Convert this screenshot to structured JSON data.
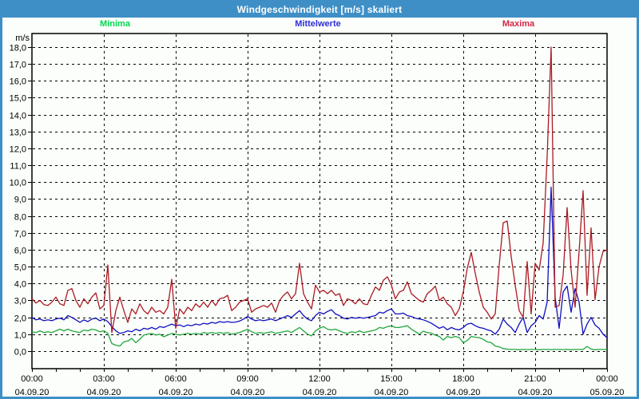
{
  "window": {
    "title": "Windgeschwindigkeit [m/s] skaliert"
  },
  "colors": {
    "frame": "#3E8FC6",
    "titlebar_bg": "#3E8FC6",
    "titlebar_text": "#FFFFFF",
    "background": "#FBFEFA",
    "plot_border": "#000000",
    "grid": "#000000",
    "axis_text": "#000000"
  },
  "legend": [
    {
      "label": "Minima",
      "text_color": "#00D74E"
    },
    {
      "label": "Mittelwerte",
      "text_color": "#2E2ED8"
    },
    {
      "label": "Maxima",
      "text_color": "#D22745"
    }
  ],
  "chart_data": {
    "type": "line",
    "title": "Windgeschwindigkeit [m/s] skaliert",
    "y_unit_label": "m/s",
    "xlabel": "",
    "ylabel": "m/s",
    "ylim": [
      -1.05,
      18.85
    ],
    "y_tick_step": 1.0,
    "y_tick_labels": [
      "0,0",
      "1,0",
      "2,0",
      "3,0",
      "4,0",
      "5,0",
      "6,0",
      "7,0",
      "8,0",
      "9,0",
      "10,0",
      "11,0",
      "12,0",
      "13,0",
      "14,0",
      "15,0",
      "16,0",
      "17,0",
      "18,0"
    ],
    "grid": true,
    "grid_style": "dashed",
    "legend_position": "top",
    "x_span_hours": 24,
    "x_grid_hours": 3,
    "x_minor_tick_hours": 1,
    "sample_interval_minutes": 10,
    "x_ticks": [
      {
        "time": "00:00",
        "date": "04.09.20"
      },
      {
        "time": "03:00",
        "date": "04.09.20"
      },
      {
        "time": "06:00",
        "date": "04.09.20"
      },
      {
        "time": "09:00",
        "date": "04.09.20"
      },
      {
        "time": "12:00",
        "date": "04.09.20"
      },
      {
        "time": "15:00",
        "date": "04.09.20"
      },
      {
        "time": "18:00",
        "date": "04.09.20"
      },
      {
        "time": "21:00",
        "date": "04.09.20"
      },
      {
        "time": "00:00",
        "date": "05.09.20"
      }
    ],
    "series": [
      {
        "name": "Minima",
        "color": "#21A63C",
        "values": [
          1.15,
          1.1,
          1.2,
          1.1,
          1.15,
          1.1,
          1.2,
          1.3,
          1.2,
          1.3,
          1.2,
          1.15,
          1.1,
          1.25,
          1.2,
          1.3,
          1.25,
          1.15,
          1.2,
          1.05,
          0.45,
          0.35,
          0.3,
          0.55,
          0.6,
          0.75,
          0.5,
          0.7,
          0.95,
          1.0,
          1.05,
          0.95,
          1.0,
          0.85,
          0.95,
          1.05,
          1.0,
          0.95,
          1.0,
          1.05,
          1.0,
          1.05,
          1.0,
          1.1,
          1.05,
          1.1,
          1.05,
          1.1,
          1.05,
          1.1,
          1.0,
          1.05,
          1.1,
          1.2,
          1.3,
          1.15,
          1.05,
          1.1,
          1.05,
          1.1,
          1.15,
          1.05,
          1.1,
          1.15,
          1.2,
          1.1,
          1.25,
          1.4,
          1.2,
          1.0,
          0.9,
          1.2,
          1.35,
          1.45,
          1.3,
          1.25,
          1.3,
          1.2,
          1.1,
          1.05,
          1.15,
          1.1,
          1.2,
          1.1,
          1.15,
          1.2,
          1.25,
          1.4,
          1.35,
          1.45,
          1.5,
          1.4,
          1.4,
          1.45,
          1.5,
          1.3,
          1.15,
          1.0,
          1.18,
          1.1,
          1.07,
          0.95,
          0.87,
          0.65,
          0.87,
          0.8,
          0.87,
          0.8,
          0.5,
          0.63,
          0.87,
          0.82,
          0.8,
          0.7,
          0.55,
          0.5,
          0.3,
          0.25,
          0.15,
          0.12,
          0.1,
          0.1,
          0.08,
          0.1,
          0.09,
          0.1,
          0.1,
          0.08,
          0.1,
          0.1,
          0.09,
          0.1,
          0.1,
          0.09,
          0.1,
          0.08,
          0.1,
          0.1,
          0.1,
          0.28,
          0.12,
          0.08,
          0.1,
          0.1,
          0.1
        ]
      },
      {
        "name": "Mittelwerte",
        "color": "#0F0FC0",
        "values": [
          2.0,
          1.85,
          1.9,
          1.8,
          1.85,
          1.8,
          1.9,
          1.95,
          1.85,
          2.1,
          2.0,
          1.85,
          1.7,
          1.85,
          1.75,
          1.9,
          1.95,
          1.8,
          1.9,
          1.75,
          1.45,
          1.2,
          1.05,
          1.1,
          1.2,
          1.15,
          1.3,
          1.2,
          1.35,
          1.3,
          1.4,
          1.3,
          1.45,
          1.4,
          1.5,
          1.6,
          1.5,
          1.55,
          1.45,
          1.55,
          1.5,
          1.6,
          1.55,
          1.65,
          1.6,
          1.7,
          1.65,
          1.75,
          1.7,
          1.75,
          1.7,
          1.72,
          1.78,
          1.9,
          2.05,
          1.9,
          1.8,
          1.85,
          1.8,
          1.85,
          1.9,
          1.8,
          1.9,
          2.0,
          2.1,
          2.0,
          2.2,
          2.4,
          2.1,
          1.9,
          1.8,
          2.1,
          2.3,
          2.2,
          2.35,
          2.45,
          2.2,
          2.1,
          1.95,
          1.9,
          2.0,
          1.95,
          2.0,
          1.95,
          2.0,
          2.05,
          2.1,
          2.3,
          2.25,
          2.4,
          2.5,
          2.2,
          2.2,
          2.25,
          2.1,
          2.05,
          1.95,
          1.9,
          1.85,
          1.76,
          1.65,
          1.5,
          1.35,
          1.45,
          1.26,
          1.4,
          1.3,
          1.26,
          1.4,
          1.6,
          1.65,
          1.5,
          1.4,
          1.35,
          1.26,
          1.2,
          1.0,
          1.3,
          1.9,
          1.6,
          1.4,
          1.1,
          1.6,
          2.0,
          1.1,
          1.5,
          1.7,
          2.1,
          1.9,
          2.9,
          9.7,
          3.2,
          1.35,
          3.5,
          3.85,
          2.3,
          3.7,
          2.9,
          1.0,
          1.6,
          2.0,
          1.55,
          1.35,
          1.0,
          0.8
        ]
      },
      {
        "name": "Maxima",
        "color": "#AC1A24",
        "values": [
          3.1,
          2.85,
          3.0,
          2.75,
          2.7,
          2.9,
          3.2,
          2.8,
          2.7,
          3.6,
          3.7,
          3.0,
          2.6,
          3.1,
          2.8,
          3.2,
          3.45,
          2.5,
          2.7,
          5.1,
          1.1,
          2.4,
          3.2,
          2.4,
          1.7,
          2.5,
          2.2,
          2.8,
          2.4,
          2.2,
          2.6,
          2.3,
          2.4,
          2.2,
          2.6,
          4.25,
          1.35,
          2.5,
          2.2,
          2.6,
          2.4,
          2.8,
          2.6,
          2.9,
          2.6,
          3.0,
          2.7,
          3.1,
          3.15,
          3.3,
          2.4,
          2.6,
          2.9,
          3.0,
          3.1,
          2.3,
          2.5,
          2.6,
          2.7,
          2.6,
          2.85,
          2.3,
          3.0,
          3.3,
          3.5,
          3.1,
          3.4,
          5.2,
          3.4,
          2.9,
          2.5,
          3.9,
          3.5,
          3.6,
          3.4,
          3.6,
          3.3,
          3.4,
          2.7,
          3.1,
          3.0,
          2.8,
          3.1,
          2.8,
          2.75,
          3.3,
          3.8,
          3.6,
          4.2,
          4.4,
          3.9,
          3.1,
          3.5,
          3.6,
          4.1,
          3.4,
          3.2,
          3.0,
          2.9,
          3.4,
          3.6,
          3.85,
          3.0,
          3.2,
          2.8,
          2.6,
          2.1,
          2.5,
          3.5,
          4.9,
          5.85,
          4.6,
          3.5,
          2.6,
          2.3,
          1.9,
          2.2,
          5.1,
          7.6,
          7.7,
          5.6,
          3.9,
          2.4,
          2.0,
          5.3,
          2.2,
          5.2,
          4.8,
          6.4,
          11.5,
          18.0,
          2.6,
          2.7,
          4.5,
          8.5,
          4.8,
          2.6,
          5.9,
          9.5,
          3.3,
          7.3,
          3.05,
          5.0,
          5.9,
          6.0
        ]
      }
    ]
  }
}
